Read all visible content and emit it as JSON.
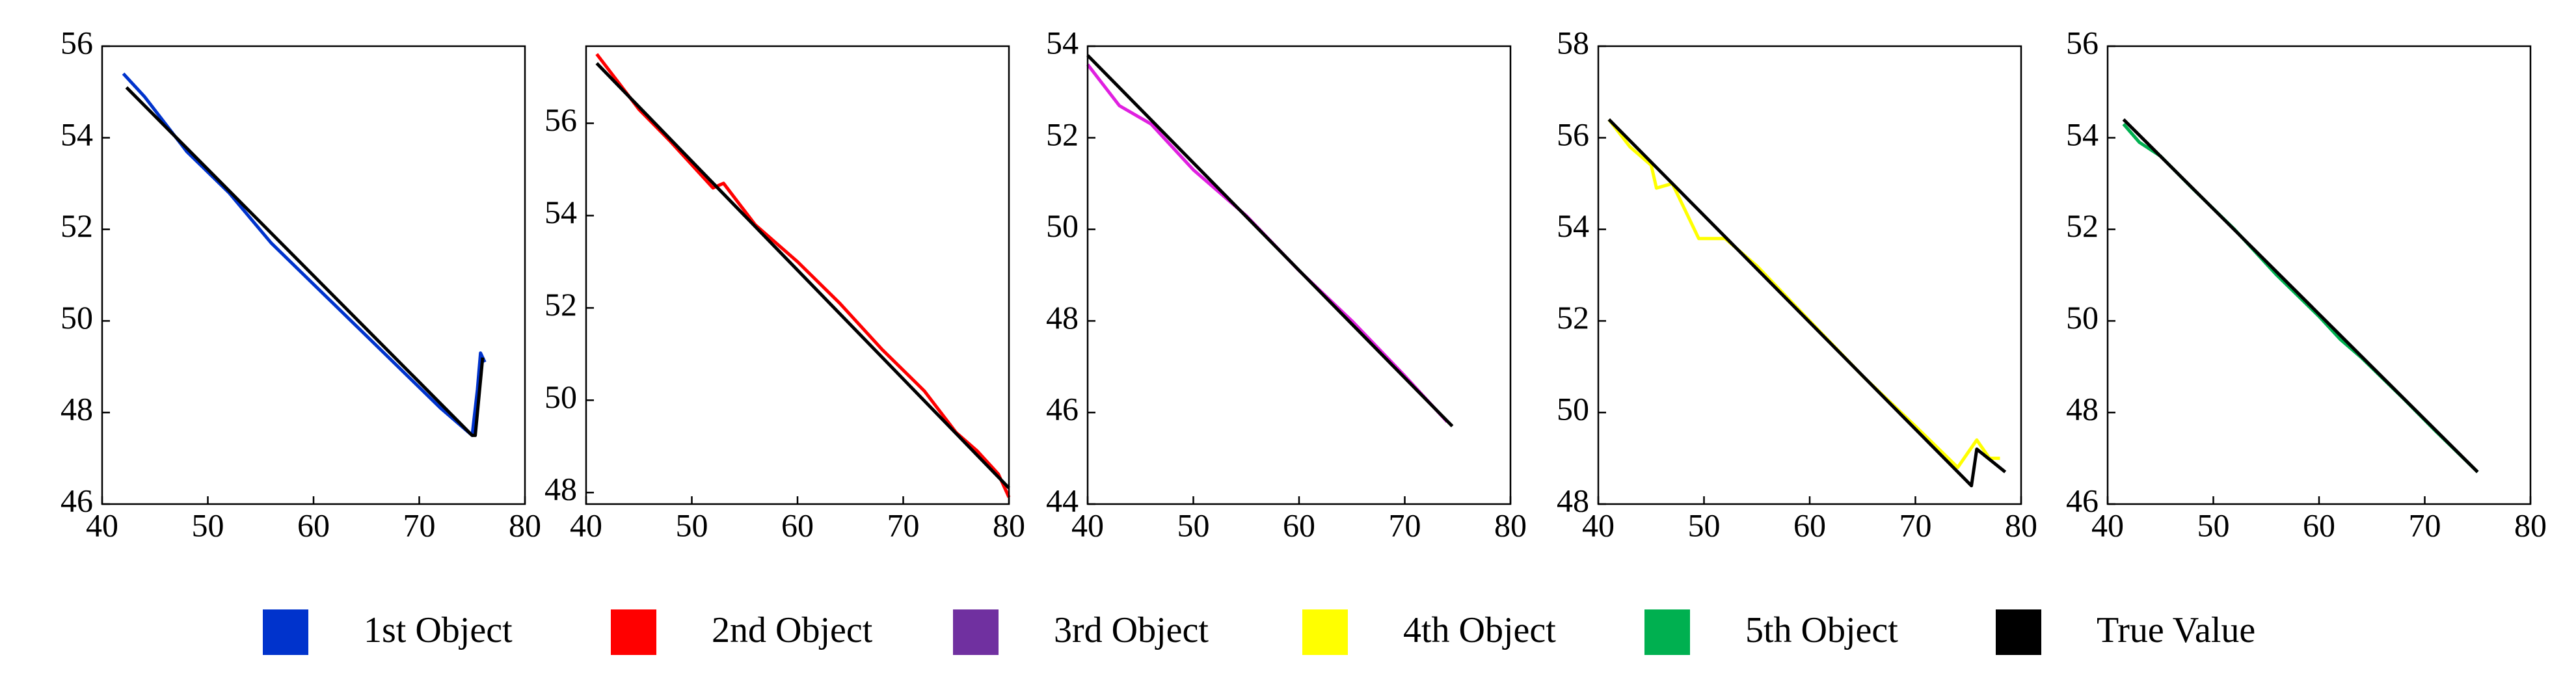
{
  "chart_data": [
    {
      "type": "line",
      "xlim": [
        40,
        80
      ],
      "xticks": [
        40,
        50,
        60,
        70,
        80
      ],
      "ylim": [
        46,
        56
      ],
      "yticks": [
        46,
        48,
        50,
        52,
        54,
        56
      ],
      "series": [
        {
          "color": "#0033cc",
          "x": [
            42,
            44,
            46,
            48,
            52,
            56,
            60,
            64,
            68,
            72,
            75,
            75.5,
            75.8,
            76.2
          ],
          "values": [
            55.4,
            54.9,
            54.3,
            53.7,
            52.8,
            51.7,
            50.8,
            49.9,
            49.0,
            48.1,
            47.5,
            48.5,
            49.3,
            49.1
          ]
        },
        {
          "color": "#000000",
          "x": [
            42.3,
            75,
            75.3,
            76
          ],
          "values": [
            55.1,
            47.5,
            47.5,
            49.2
          ]
        }
      ]
    },
    {
      "type": "line",
      "xlim": [
        40,
        80
      ],
      "xticks": [
        40,
        50,
        60,
        70,
        80
      ],
      "ylim": [
        47.75,
        57.67
      ],
      "yticks": [
        48,
        50,
        52,
        54,
        56
      ],
      "series": [
        {
          "color": "#ff0000",
          "x": [
            41,
            43,
            45,
            48,
            50,
            52,
            53,
            56,
            60,
            64,
            68,
            72,
            75,
            77,
            79,
            80
          ],
          "values": [
            57.5,
            56.9,
            56.3,
            55.6,
            55.1,
            54.6,
            54.7,
            53.8,
            53,
            52.1,
            51.1,
            50.2,
            49.3,
            48.9,
            48.4,
            47.9
          ]
        },
        {
          "color": "#000000",
          "x": [
            41,
            80
          ],
          "values": [
            57.3,
            48.1
          ]
        }
      ]
    },
    {
      "type": "line",
      "xlim": [
        40,
        80
      ],
      "xticks": [
        40,
        50,
        60,
        70,
        80
      ],
      "ylim": [
        44,
        54
      ],
      "yticks": [
        44,
        46,
        48,
        50,
        52,
        54
      ],
      "series": [
        {
          "color": "#e020e0",
          "x": [
            40,
            43,
            46,
            50,
            55,
            60,
            65,
            70,
            74
          ],
          "values": [
            53.6,
            52.7,
            52.3,
            51.3,
            50.3,
            49.1,
            48,
            46.8,
            45.8
          ]
        },
        {
          "color": "#000000",
          "x": [
            40,
            74.5
          ],
          "values": [
            53.8,
            45.7
          ]
        }
      ]
    },
    {
      "type": "line",
      "xlim": [
        40,
        80
      ],
      "xticks": [
        40,
        50,
        60,
        70,
        80
      ],
      "ylim": [
        48,
        58
      ],
      "yticks": [
        48,
        50,
        52,
        54,
        56,
        58
      ],
      "series": [
        {
          "color": "#ffff00",
          "x": [
            41,
            43,
            45,
            45.5,
            47,
            49.5,
            52,
            55,
            60,
            65,
            70,
            74,
            75.8,
            77,
            78
          ],
          "values": [
            56.4,
            55.8,
            55.4,
            54.9,
            55.0,
            53.8,
            53.8,
            53.2,
            52,
            50.8,
            49.7,
            48.8,
            49.4,
            49,
            49
          ]
        },
        {
          "color": "#000000",
          "x": [
            41,
            75.3,
            75.8,
            78.5
          ],
          "values": [
            56.4,
            48.4,
            49.2,
            48.7
          ]
        }
      ]
    },
    {
      "type": "line",
      "xlim": [
        40,
        80
      ],
      "xticks": [
        40,
        50,
        60,
        70,
        80
      ],
      "ylim": [
        46,
        56
      ],
      "yticks": [
        46,
        48,
        50,
        52,
        54,
        56
      ],
      "series": [
        {
          "color": "#00b050",
          "x": [
            41.5,
            43,
            45,
            48,
            52,
            56,
            60,
            62,
            64,
            68,
            71,
            75
          ],
          "values": [
            54.3,
            53.9,
            53.6,
            52.9,
            52,
            51,
            50.1,
            49.6,
            49.2,
            48.3,
            47.6,
            46.7
          ]
        },
        {
          "color": "#000000",
          "x": [
            41.5,
            75
          ],
          "values": [
            54.4,
            46.7
          ]
        }
      ]
    }
  ],
  "legend": [
    {
      "name": "1st Object",
      "color": "#0033cc"
    },
    {
      "name": "2nd Object",
      "color": "#ff0000"
    },
    {
      "name": "3rd Object",
      "color": "#7030a0"
    },
    {
      "name": "4th Object",
      "color": "#ffff00"
    },
    {
      "name": "5th Object",
      "color": "#00b050"
    },
    {
      "name": "True Value",
      "color": "#000000"
    }
  ]
}
